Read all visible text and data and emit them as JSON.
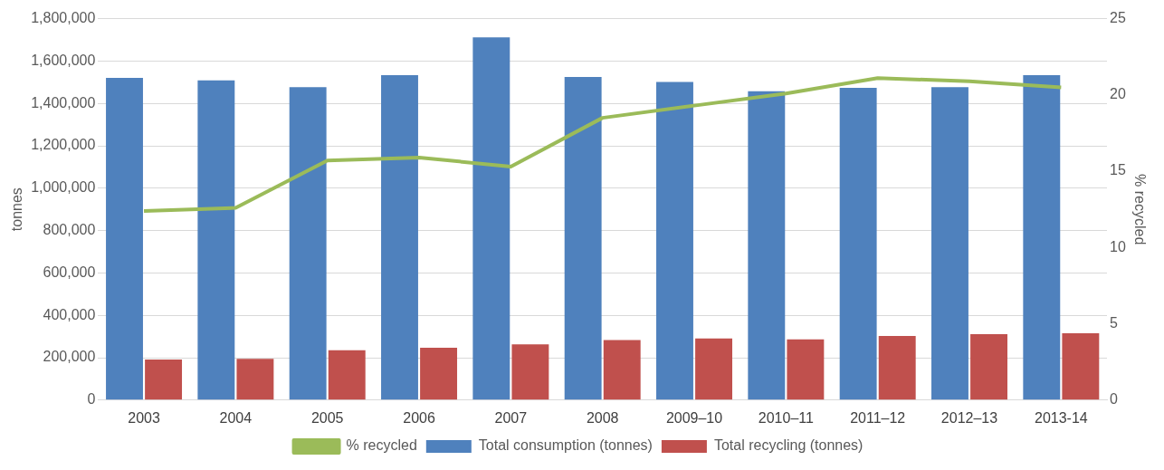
{
  "chart_data": {
    "type": "bar",
    "ylabel": "tonnes",
    "y2label": "% recycled",
    "categories": [
      "2003",
      "2004",
      "2005",
      "2006",
      "2007",
      "2008",
      "2009–10",
      "2010–11",
      "2011–12",
      "2012–13",
      "2013-14"
    ],
    "series": [
      {
        "name": "Total consumption (tonnes)",
        "color": "#4f81bd",
        "values": [
          1521000,
          1509000,
          1477000,
          1533000,
          1712000,
          1525000,
          1501000,
          1457000,
          1473000,
          1477000,
          1533000
        ]
      },
      {
        "name": "Total recycling (tonnes)",
        "color": "#c0504d",
        "values": [
          191000,
          195000,
          235000,
          247000,
          263000,
          283000,
          291000,
          287000,
          303000,
          311000,
          315000
        ]
      },
      {
        "name": "% recycled",
        "type": "line",
        "axis": "y2",
        "color": "#9bbb59",
        "marker": "none",
        "values": [
          12.4,
          12.6,
          15.7,
          15.9,
          15.3,
          18.5,
          19.3,
          20.1,
          21.1,
          20.9,
          20.5
        ]
      }
    ],
    "ylim": [
      0,
      1800000
    ],
    "yticks": [
      {
        "value": 0,
        "label": "0"
      },
      {
        "value": 200000,
        "label": "200,000"
      },
      {
        "value": 400000,
        "label": "400,000"
      },
      {
        "value": 600000,
        "label": "600,000"
      },
      {
        "value": 800000,
        "label": "800,000"
      },
      {
        "value": 1000000,
        "label": "1,000,000"
      },
      {
        "value": 1200000,
        "label": "1,200,000"
      },
      {
        "value": 1400000,
        "label": "1,400,000"
      },
      {
        "value": 1600000,
        "label": "1,600,000"
      },
      {
        "value": 1800000,
        "label": "1,800,000"
      }
    ],
    "y2lim": [
      0,
      25
    ],
    "y2ticks": [
      0,
      5,
      10,
      15,
      20,
      25
    ],
    "grid": "y",
    "legend": "bottom"
  }
}
